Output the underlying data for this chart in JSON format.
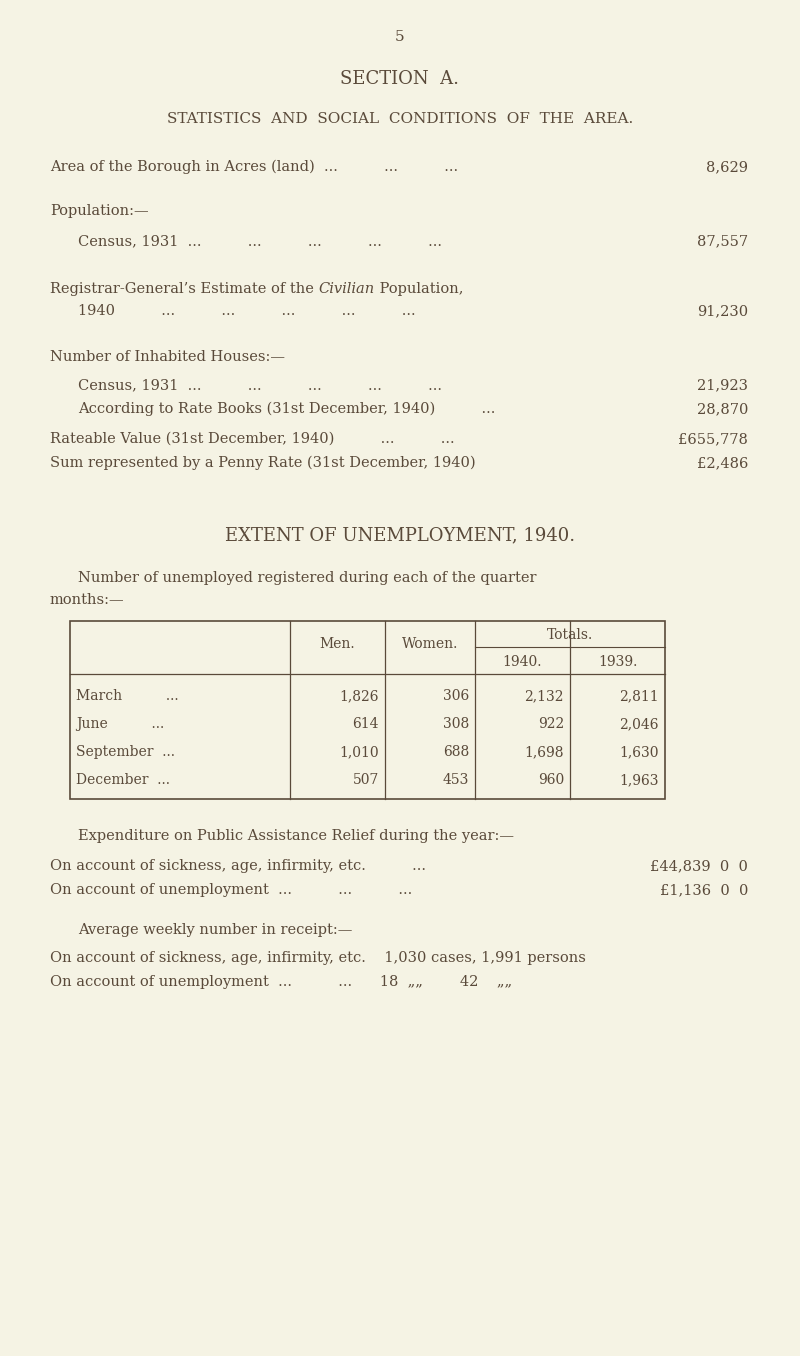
{
  "background_color": "#f5f3e4",
  "text_color": "#5a4a3a",
  "page_number": "5",
  "section_title": "SECTION  A.",
  "subtitle": "STATISTICS  AND  SOCIAL  CONDITIONS  OF  THE  AREA.",
  "unemployment_title": "EXTENT OF UNEMPLOYMENT, 1940.",
  "table_rows": [
    [
      "March          ...",
      "1,826",
      "306",
      "2,132",
      "2,811"
    ],
    [
      "June          ...",
      "614",
      "308",
      "922",
      "2,046"
    ],
    [
      "September  ...",
      "1,010",
      "688",
      "1,698",
      "1,630"
    ],
    [
      "December  ...",
      "507",
      "453",
      "960",
      "1,963"
    ]
  ]
}
